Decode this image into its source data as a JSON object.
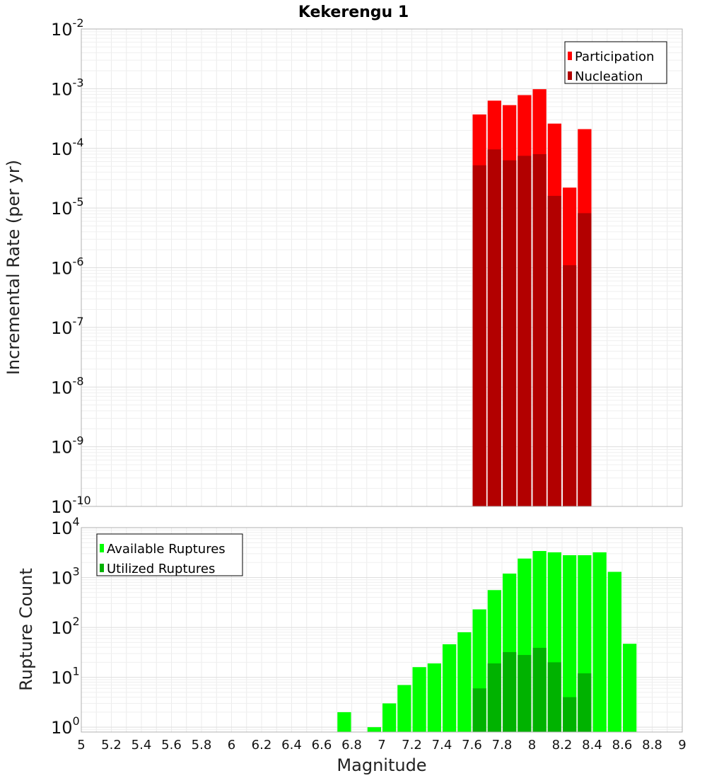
{
  "chart_data": [
    {
      "type": "bar",
      "title": "Kekerengu 1",
      "ylabel": "Incremental Rate (per yr)",
      "xlabel": "",
      "yscale": "log",
      "ylim": [
        1e-10,
        0.01
      ],
      "xlim": [
        5,
        9
      ],
      "ytick_labels": [
        {
          "base": "10",
          "exp": "-2"
        },
        {
          "base": "10",
          "exp": "-3"
        },
        {
          "base": "10",
          "exp": "-4"
        },
        {
          "base": "10",
          "exp": "-5"
        },
        {
          "base": "10",
          "exp": "-6"
        },
        {
          "base": "10",
          "exp": "-7"
        },
        {
          "base": "10",
          "exp": "-8"
        },
        {
          "base": "10",
          "exp": "-9"
        },
        {
          "base": "10",
          "exp": "-10"
        }
      ],
      "legend_position": "top-right",
      "grid": true,
      "x": [
        7.65,
        7.75,
        7.85,
        7.95,
        8.05,
        8.15,
        8.25,
        8.35
      ],
      "series": [
        {
          "name": "Participation",
          "color": "#ff0000",
          "values": [
            0.00037,
            0.00063,
            0.00053,
            0.00078,
            0.00098,
            0.00026,
            2.2e-05,
            0.00021
          ]
        },
        {
          "name": "Nucleation",
          "color": "#b20000",
          "values": [
            5.2e-05,
            9.6e-05,
            6.3e-05,
            7.5e-05,
            8e-05,
            1.6e-05,
            1.1e-06,
            8.2e-06
          ]
        }
      ]
    },
    {
      "type": "bar",
      "title": "",
      "ylabel": "Rupture Count",
      "xlabel": "Magnitude",
      "yscale": "log",
      "ylim": [
        0.8,
        10000
      ],
      "xlim": [
        5,
        9
      ],
      "ytick_labels": [
        {
          "base": "10",
          "exp": "4"
        },
        {
          "base": "10",
          "exp": "3"
        },
        {
          "base": "10",
          "exp": "2"
        },
        {
          "base": "10",
          "exp": "1"
        },
        {
          "base": "10",
          "exp": "0"
        }
      ],
      "xtick_labels": [
        "5",
        "5.2",
        "5.4",
        "5.6",
        "5.8",
        "6",
        "6.2",
        "6.4",
        "6.6",
        "6.8",
        "7",
        "7.2",
        "7.4",
        "7.6",
        "7.8",
        "8",
        "8.2",
        "8.4",
        "8.6",
        "8.8",
        "9"
      ],
      "legend_position": "top-left",
      "grid": true,
      "x": [
        6.75,
        6.85,
        6.95,
        7.05,
        7.15,
        7.25,
        7.35,
        7.45,
        7.55,
        7.65,
        7.75,
        7.85,
        7.95,
        8.05,
        8.15,
        8.25,
        8.35,
        8.45,
        8.55,
        8.65
      ],
      "series": [
        {
          "name": "Available Ruptures",
          "color": "#00ff00",
          "values": [
            2,
            0,
            1,
            3,
            7,
            16,
            19,
            46,
            80,
            230,
            560,
            1200,
            2400,
            3400,
            3200,
            2800,
            2800,
            3200,
            1300,
            47
          ]
        },
        {
          "name": "Utilized Ruptures",
          "color": "#00b200",
          "values": [
            0,
            0,
            0,
            0,
            0,
            0,
            0,
            0,
            0,
            6,
            19,
            32,
            28,
            39,
            20,
            4,
            12,
            0,
            0,
            0
          ]
        }
      ]
    }
  ]
}
